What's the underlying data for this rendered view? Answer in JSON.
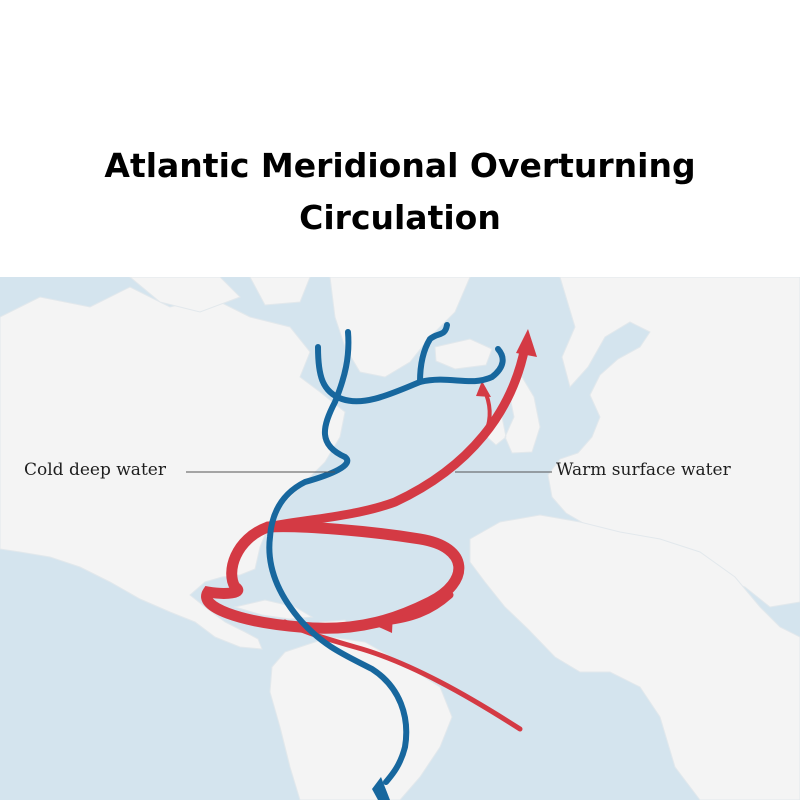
{
  "title": "Atlantic Meridional Overturning Circulation",
  "labels": {
    "cold": "Cold deep water",
    "warm": "Warm surface water"
  },
  "colors": {
    "ocean": "#d4e4ee",
    "land": "#f4f4f4",
    "cold_current": "#17679e",
    "warm_current": "#d43a44",
    "leader_line": "#555555"
  }
}
